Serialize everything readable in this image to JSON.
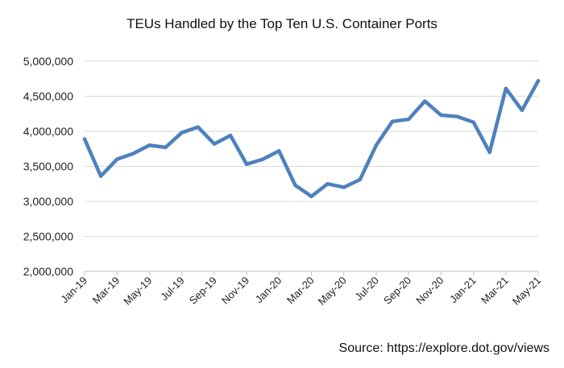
{
  "chart_data": {
    "type": "line",
    "title": "TEUs Handled by the Top Ten U.S. Container Ports",
    "xlabel": "",
    "ylabel": "",
    "ylim": [
      2000000,
      5000000
    ],
    "yticks": [
      "2,000,000",
      "2,500,000",
      "3,000,000",
      "3,500,000",
      "4,000,000",
      "4,500,000",
      "5,000,000"
    ],
    "x_tick_labels": [
      "Jan-19",
      "Mar-19",
      "May-19",
      "Jul-19",
      "Sep-19",
      "Nov-19",
      "Jan-20",
      "Mar-20",
      "May-20",
      "Jul-20",
      "Sep-20",
      "Nov-20",
      "Jan-21",
      "Mar-21",
      "May-21"
    ],
    "categories": [
      "Jan-19",
      "Feb-19",
      "Mar-19",
      "Apr-19",
      "May-19",
      "Jun-19",
      "Jul-19",
      "Aug-19",
      "Sep-19",
      "Oct-19",
      "Nov-19",
      "Dec-19",
      "Jan-20",
      "Feb-20",
      "Mar-20",
      "Apr-20",
      "May-20",
      "Jun-20",
      "Jul-20",
      "Aug-20",
      "Sep-20",
      "Oct-20",
      "Nov-20",
      "Dec-20",
      "Jan-21",
      "Feb-21",
      "Mar-21",
      "Apr-21",
      "May-21"
    ],
    "series": [
      {
        "color": "#4f81bd",
        "values": [
          3890000,
          3360000,
          3600000,
          3680000,
          3800000,
          3770000,
          3980000,
          4060000,
          3820000,
          3940000,
          3530000,
          3600000,
          3720000,
          3230000,
          3070000,
          3250000,
          3200000,
          3310000,
          3800000,
          4140000,
          4170000,
          4430000,
          4230000,
          4210000,
          4130000,
          3700000,
          4610000,
          4300000,
          4720000
        ]
      }
    ],
    "grid": true
  },
  "source_note": "Source: https://explore.dot.gov/views"
}
